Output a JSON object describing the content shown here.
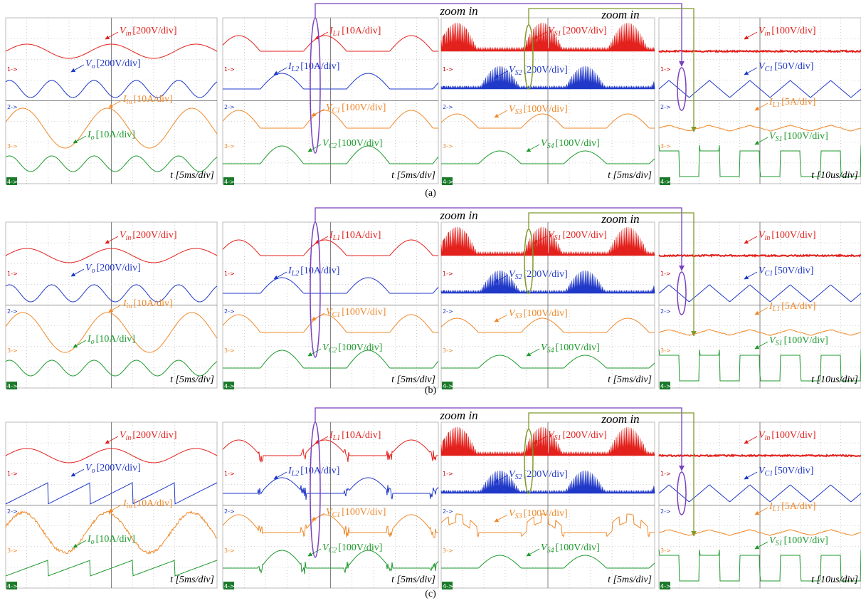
{
  "zoom_label": "zoom in",
  "channel_markers": [
    "1->",
    "2->",
    "3->",
    "4->"
  ],
  "rows": [
    {
      "caption": "(a)",
      "panels": [
        {
          "time": "t [5ms/div]",
          "labels": [
            {
              "sym": "V",
              "sub": "in",
              "scale": "[200V/div]"
            },
            {
              "sym": "V",
              "sub": "o",
              "scale": "[200V/div]"
            },
            {
              "sym": "I",
              "sub": "in",
              "scale": "[10A/div]"
            },
            {
              "sym": "I",
              "sub": "o",
              "scale": "[10A/div]"
            }
          ]
        },
        {
          "time": "t [5ms/div]",
          "labels": [
            {
              "sym": "I",
              "sub": "L1",
              "scale": "[10A/div]"
            },
            {
              "sym": "I",
              "sub": "L2",
              "scale": "[10A/div]"
            },
            {
              "sym": "V",
              "sub": "C1",
              "scale": "[100V/div]"
            },
            {
              "sym": "V",
              "sub": "C2",
              "scale": "[100V/div]"
            }
          ]
        },
        {
          "time": "t [5ms/div]",
          "labels": [
            {
              "sym": "V",
              "sub": "S1",
              "scale": "[200V/div]"
            },
            {
              "sym": "V",
              "sub": "S2",
              "scale": "[200V/div]"
            },
            {
              "sym": "V",
              "sub": "S3",
              "scale": "[100V/div]"
            },
            {
              "sym": "V",
              "sub": "S4",
              "scale": "[100V/div]"
            }
          ]
        },
        {
          "time": "t [10us/div]",
          "labels": [
            {
              "sym": "V",
              "sub": "in",
              "scale": "[100V/div]"
            },
            {
              "sym": "V",
              "sub": "C1",
              "scale": "[50V/div]"
            },
            {
              "sym": "I",
              "sub": "L1",
              "scale": "[5A/div]"
            },
            {
              "sym": "V",
              "sub": "S1",
              "scale": "[100V/div]"
            }
          ]
        }
      ]
    },
    {
      "caption": "(b)",
      "panels": [
        {
          "time": "t [5ms/div]",
          "labels": [
            {
              "sym": "V",
              "sub": "in",
              "scale": "[200V/div]"
            },
            {
              "sym": "V",
              "sub": "o",
              "scale": "[200V/div]"
            },
            {
              "sym": "I",
              "sub": "in",
              "scale": "[10A/div]"
            },
            {
              "sym": "I",
              "sub": "o",
              "scale": "[10A/div]"
            }
          ]
        },
        {
          "time": "t [5ms/div]",
          "labels": [
            {
              "sym": "I",
              "sub": "L1",
              "scale": "[10A/div]"
            },
            {
              "sym": "I",
              "sub": "L2",
              "scale": "[10A/div]"
            },
            {
              "sym": "V",
              "sub": "C1",
              "scale": "[100V/div]"
            },
            {
              "sym": "V",
              "sub": "C2",
              "scale": "[100V/div]"
            }
          ]
        },
        {
          "time": "t [5ms/div]",
          "labels": [
            {
              "sym": "V",
              "sub": "S1",
              "scale": "[200V/div]"
            },
            {
              "sym": "V",
              "sub": "S2",
              "scale": "[200V/div]"
            },
            {
              "sym": "V",
              "sub": "S3",
              "scale": "[100V/div]"
            },
            {
              "sym": "V",
              "sub": "S4",
              "scale": "[100V/div]"
            }
          ]
        },
        {
          "time": "t [10us/div]",
          "labels": [
            {
              "sym": "V",
              "sub": "in",
              "scale": "[100V/div]"
            },
            {
              "sym": "V",
              "sub": "C1",
              "scale": "[50V/div]"
            },
            {
              "sym": "I",
              "sub": "L1",
              "scale": "[5A/div]"
            },
            {
              "sym": "V",
              "sub": "S1",
              "scale": "[100V/div]"
            }
          ]
        }
      ]
    },
    {
      "caption": "(c)",
      "panels": [
        {
          "time": "t [5ms/div]",
          "labels": [
            {
              "sym": "V",
              "sub": "in",
              "scale": "[200V/div]"
            },
            {
              "sym": "V",
              "sub": "o",
              "scale": "[200V/div]"
            },
            {
              "sym": "I",
              "sub": "in",
              "scale": "[10A/div]"
            },
            {
              "sym": "I",
              "sub": "o",
              "scale": "[10A/div]"
            }
          ]
        },
        {
          "time": "t [5ms/div]",
          "labels": [
            {
              "sym": "I",
              "sub": "L1",
              "scale": "[10A/div]"
            },
            {
              "sym": "I",
              "sub": "L2",
              "scale": "[10A/div]"
            },
            {
              "sym": "V",
              "sub": "C1",
              "scale": "[100V/div]"
            },
            {
              "sym": "V",
              "sub": "C2",
              "scale": "[100V/div]"
            }
          ]
        },
        {
          "time": "t [5ms/div]",
          "labels": [
            {
              "sym": "V",
              "sub": "S1",
              "scale": "[200V/div]"
            },
            {
              "sym": "V",
              "sub": "S2",
              "scale": "[200V/div]"
            },
            {
              "sym": "V",
              "sub": "S3",
              "scale": "[100V/div]"
            },
            {
              "sym": "V",
              "sub": "S4",
              "scale": "[100V/div]"
            }
          ]
        },
        {
          "time": "t [10us/div]",
          "labels": [
            {
              "sym": "V",
              "sub": "in",
              "scale": "[100V/div]"
            },
            {
              "sym": "V",
              "sub": "C1",
              "scale": "[50V/div]"
            },
            {
              "sym": "I",
              "sub": "L1",
              "scale": "[5A/div]"
            },
            {
              "sym": "V",
              "sub": "S1",
              "scale": "[100V/div]"
            }
          ]
        }
      ]
    }
  ]
}
